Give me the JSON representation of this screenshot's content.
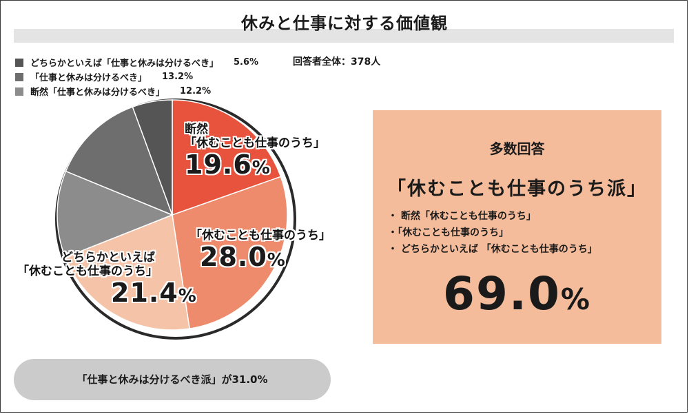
{
  "title": "休みと仕事に対する価値観",
  "total": "回答者全体：378人",
  "legend": [
    {
      "text": "どちらかといえば「仕事と休みは分けるべき」",
      "value": "5.6%",
      "color": "#555555"
    },
    {
      "text": "「仕事と休みは分けるべき」",
      "value": "13.2%",
      "color": "#6e6e6e"
    },
    {
      "text": "断然「仕事と休みは分けるべき」",
      "value": "12.2%",
      "color": "#8c8c8c"
    }
  ],
  "labels": {
    "a": {
      "l1": "断然",
      "l2": "「休むことも仕事のうち」",
      "pct": "19.6",
      "unit": "%"
    },
    "b": {
      "l2": "「休むことも仕事のうち」",
      "pct": "28.0",
      "unit": "%"
    },
    "c": {
      "l1": "どちらかといえば",
      "l2": "「休むことも仕事のうち」",
      "pct": "21.4",
      "unit": "%"
    }
  },
  "callout": {
    "head": "多数回答",
    "main": "「休むことも仕事のうち派」",
    "items": [
      "・ 断然「休むことも仕事のうち」",
      "・「休むことも仕事のうち」",
      "・ どちらかといえば 「休むことも仕事のうち」"
    ],
    "big": "69.0",
    "unit": "%"
  },
  "pill": "「仕事と休みは分けるべき派」が31.0%",
  "chart_data": {
    "type": "pie",
    "title": "休みと仕事に対する価値観",
    "slices": [
      {
        "name": "断然「休むことも仕事のうち」",
        "value": 19.6,
        "color": "#e8533d"
      },
      {
        "name": "「休むことも仕事のうち」",
        "value": 28.0,
        "color": "#ee8b6c"
      },
      {
        "name": "どちらかといえば「休むことも仕事のうち」",
        "value": 21.4,
        "color": "#f5c4a8"
      },
      {
        "name": "断然「仕事と休みは分けるべき」",
        "value": 12.2,
        "color": "#8c8c8c"
      },
      {
        "name": "「仕事と休みは分けるべき」",
        "value": 13.2,
        "color": "#6e6e6e"
      },
      {
        "name": "どちらかといえば「仕事と休みは分けるべき」",
        "value": 5.6,
        "color": "#555555"
      }
    ]
  }
}
